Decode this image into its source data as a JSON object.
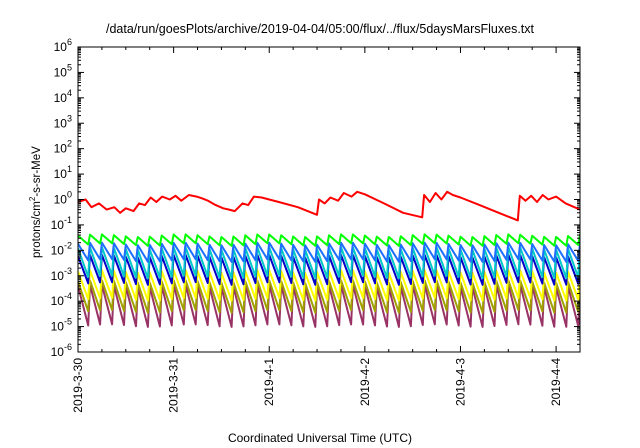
{
  "chart_data": {
    "type": "line",
    "title": "/data/run/goesPlots/archive/2019-04-04/05:00/flux/../flux/5daysMarsFluxes.txt",
    "xlabel": "Coordinated Universal Time (UTC)",
    "ylabel": {
      "prefix": "protons/cm",
      "sup": "2",
      "suffix": "-s-sr-MeV"
    },
    "yscale": "log",
    "ylim_exp": [
      -6,
      6
    ],
    "ytick_labels": [
      {
        "base": "10",
        "exp": "-6"
      },
      {
        "base": "10",
        "exp": "-5"
      },
      {
        "base": "10",
        "exp": "-4"
      },
      {
        "base": "10",
        "exp": "-3"
      },
      {
        "base": "10",
        "exp": "-2"
      },
      {
        "base": "10",
        "exp": "-1"
      },
      {
        "base": "10",
        "exp": "0"
      },
      {
        "base": "10",
        "exp": "1"
      },
      {
        "base": "10",
        "exp": "2"
      },
      {
        "base": "10",
        "exp": "3"
      },
      {
        "base": "10",
        "exp": "4"
      },
      {
        "base": "10",
        "exp": "5"
      },
      {
        "base": "10",
        "exp": "6"
      }
    ],
    "x_range_days": [
      0,
      5.25
    ],
    "x_ticks": [
      "2019-3-30",
      "2019-3-31",
      "2019-4-1",
      "2019-4-2",
      "2019-4-3",
      "2019-4-4"
    ],
    "grid": false,
    "legend": "none",
    "series": [
      {
        "color": "#ff0000",
        "x": [
          0,
          0.08,
          0.14,
          0.22,
          0.3,
          0.38,
          0.44,
          0.5,
          0.58,
          0.64,
          0.7,
          0.76,
          0.82,
          0.88,
          0.96,
          1.02,
          1.08,
          1.16,
          1.24,
          1.3,
          1.36,
          1.44,
          1.52,
          1.58,
          1.64,
          1.72,
          1.78,
          1.84,
          1.92,
          2.1,
          2.3,
          2.5,
          2.52,
          2.58,
          2.64,
          2.72,
          2.78,
          2.86,
          2.92,
          3.0,
          3.2,
          3.4,
          3.6,
          3.62,
          3.68,
          3.74,
          3.8,
          3.86,
          3.92,
          4.0,
          4.2,
          4.4,
          4.6,
          4.62,
          4.68,
          4.74,
          4.8,
          4.86,
          4.92,
          5.0,
          5.1,
          5.25
        ],
        "y": [
          0.8,
          1.0,
          0.5,
          0.7,
          0.4,
          0.5,
          0.3,
          0.45,
          0.35,
          0.7,
          0.6,
          1.2,
          0.8,
          1.3,
          1.0,
          1.4,
          0.9,
          1.5,
          1.3,
          1.1,
          0.9,
          0.6,
          0.45,
          0.4,
          0.35,
          0.7,
          0.6,
          1.3,
          1.2,
          0.8,
          0.5,
          0.25,
          1.0,
          0.7,
          1.2,
          0.9,
          1.8,
          1.3,
          2.0,
          1.6,
          0.7,
          0.3,
          0.2,
          1.5,
          0.8,
          1.8,
          1.0,
          2.0,
          1.5,
          1.2,
          0.6,
          0.3,
          0.15,
          1.4,
          0.9,
          1.4,
          0.8,
          1.5,
          1.0,
          1.3,
          0.7,
          0.4
        ]
      },
      {
        "color": "#00ff00",
        "sawtooth": {
          "period": 0.125,
          "peak": 0.038,
          "trough": 0.017
        }
      },
      {
        "color": "#1e6fff",
        "sawtooth": {
          "period": 0.125,
          "peak": 0.018,
          "trough": 0.004
        }
      },
      {
        "color": "#00c8c8",
        "sawtooth": {
          "period": 0.125,
          "peak": 0.012,
          "trough": 0.0009
        }
      },
      {
        "color": "#0000c8",
        "sawtooth": {
          "period": 0.125,
          "peak": 0.006,
          "trough": 0.0005
        }
      },
      {
        "color": "#ffff00",
        "sawtooth": {
          "period": 0.125,
          "peak": 0.0015,
          "trough": 0.00012
        }
      },
      {
        "color": "#a0a000",
        "sawtooth": {
          "period": 0.125,
          "peak": 0.0006,
          "trough": 4e-05
        }
      },
      {
        "color": "#993366",
        "sawtooth": {
          "period": 0.125,
          "peak": 0.0004,
          "trough": 1.1e-05
        }
      }
    ]
  }
}
